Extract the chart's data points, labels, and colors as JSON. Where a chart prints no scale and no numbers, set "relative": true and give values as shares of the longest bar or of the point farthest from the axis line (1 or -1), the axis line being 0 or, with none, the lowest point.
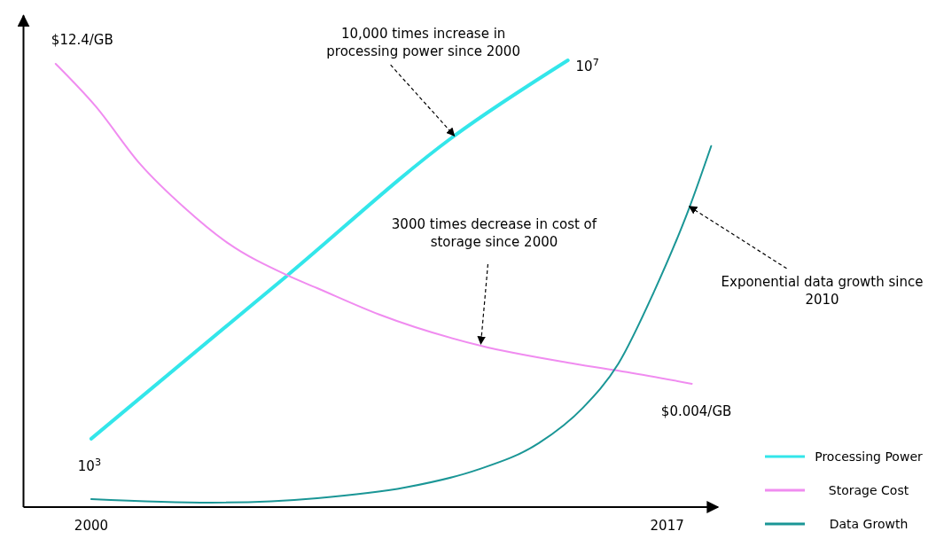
{
  "chart_data": {
    "type": "line",
    "relative": true,
    "xlim": [
      1998,
      2018.5
    ],
    "xticks": [
      2000,
      2017
    ],
    "grid": false,
    "legend": "bottom right",
    "line_style": "solid",
    "series": [
      {
        "name": "Processing Power",
        "color": "#33e6ea",
        "x": [
          2000,
          2005.75,
          2010.72,
          2014.07
        ],
        "values": [
          0.153,
          0.516,
          0.831,
          1.0
        ]
      },
      {
        "name": "Storage Cost",
        "color": "#f08cf0",
        "x": [
          1998.95,
          2000.13,
          2001.44,
          2002.75,
          2004.05,
          2005.75,
          2006.67,
          2008.5,
          2011.5,
          2014.25,
          2015.82,
          2017.73
        ],
        "values": [
          0.992,
          0.897,
          0.768,
          0.67,
          0.59,
          0.52,
          0.49,
          0.431,
          0.361,
          0.321,
          0.302,
          0.276
        ]
      },
      {
        "name": "Data Growth",
        "color": "#1a9696",
        "x": [
          2000,
          2003.53,
          2006.67,
          2009.28,
          2011.38,
          2013.21,
          2014.51,
          2015.56,
          2016.6,
          2017.65,
          2018.3
        ],
        "values": [
          0.018,
          0.01,
          0.02,
          0.044,
          0.083,
          0.143,
          0.222,
          0.321,
          0.48,
          0.669,
          0.808
        ]
      }
    ],
    "annotations": [
      {
        "text": "$12.4/GB",
        "x": 1998.95,
        "y": 0.992
      },
      {
        "text": "10,000 times increase in processing power since 2000",
        "x": 2010.72,
        "y": 0.831
      },
      {
        "text": "10$^{7}$",
        "x": 2014.07,
        "y": 1.0
      },
      {
        "text": "3000 times decrease in cost of storage since 2000",
        "x": 2011.5,
        "y": 0.365
      },
      {
        "text": "Exponential data growth since 2010",
        "x": 2017.65,
        "y": 0.673
      },
      {
        "text": "$0.004/GB",
        "x": 2017.73,
        "y": 0.276
      },
      {
        "text": "10$^{3}$",
        "x": 2000,
        "y": 0.153
      }
    ]
  }
}
